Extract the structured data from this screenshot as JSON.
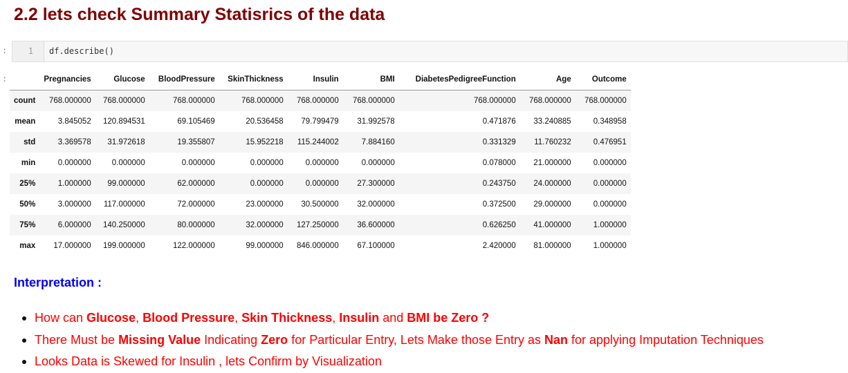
{
  "heading": "2.2 lets check Summary Statisrics of the data",
  "input_cell": {
    "prompt": ":",
    "line_number": "1",
    "code": "df.describe()"
  },
  "output_cell": {
    "prompt": ":"
  },
  "table": {
    "columns": [
      "Pregnancies",
      "Glucose",
      "BloodPressure",
      "SkinThickness",
      "Insulin",
      "BMI",
      "DiabetesPedigreeFunction",
      "Age",
      "Outcome"
    ],
    "rows": [
      {
        "label": "count",
        "values": [
          "768.000000",
          "768.000000",
          "768.000000",
          "768.000000",
          "768.000000",
          "768.000000",
          "768.000000",
          "768.000000",
          "768.000000"
        ]
      },
      {
        "label": "mean",
        "values": [
          "3.845052",
          "120.894531",
          "69.105469",
          "20.536458",
          "79.799479",
          "31.992578",
          "0.471876",
          "33.240885",
          "0.348958"
        ]
      },
      {
        "label": "std",
        "values": [
          "3.369578",
          "31.972618",
          "19.355807",
          "15.952218",
          "115.244002",
          "7.884160",
          "0.331329",
          "11.760232",
          "0.476951"
        ]
      },
      {
        "label": "min",
        "values": [
          "0.000000",
          "0.000000",
          "0.000000",
          "0.000000",
          "0.000000",
          "0.000000",
          "0.078000",
          "21.000000",
          "0.000000"
        ]
      },
      {
        "label": "25%",
        "values": [
          "1.000000",
          "99.000000",
          "62.000000",
          "0.000000",
          "0.000000",
          "27.300000",
          "0.243750",
          "24.000000",
          "0.000000"
        ]
      },
      {
        "label": "50%",
        "values": [
          "3.000000",
          "117.000000",
          "72.000000",
          "23.000000",
          "30.500000",
          "32.000000",
          "0.372500",
          "29.000000",
          "0.000000"
        ]
      },
      {
        "label": "75%",
        "values": [
          "6.000000",
          "140.250000",
          "80.000000",
          "32.000000",
          "127.250000",
          "36.600000",
          "0.626250",
          "41.000000",
          "1.000000"
        ]
      },
      {
        "label": "max",
        "values": [
          "17.000000",
          "199.000000",
          "122.000000",
          "99.000000",
          "846.000000",
          "67.100000",
          "2.420000",
          "81.000000",
          "1.000000"
        ]
      }
    ]
  },
  "interpretation": {
    "title": "Interpretation :",
    "points": [
      [
        {
          "t": "How can ",
          "b": false
        },
        {
          "t": "Glucose",
          "b": true
        },
        {
          "t": ", ",
          "b": false
        },
        {
          "t": "Blood Pressure",
          "b": true
        },
        {
          "t": ", ",
          "b": false
        },
        {
          "t": "Skin Thickness",
          "b": true
        },
        {
          "t": ", ",
          "b": false
        },
        {
          "t": "Insulin",
          "b": true
        },
        {
          "t": " and ",
          "b": false
        },
        {
          "t": "BMI be Zero ?",
          "b": true
        }
      ],
      [
        {
          "t": "There Must be ",
          "b": false
        },
        {
          "t": "Missing Value",
          "b": true
        },
        {
          "t": " Indicating ",
          "b": false
        },
        {
          "t": "Zero",
          "b": true
        },
        {
          "t": " for Particular Entry, Lets Make those Entry as ",
          "b": false
        },
        {
          "t": "Nan",
          "b": true
        },
        {
          "t": " for applying Imputation Techniques",
          "b": false
        }
      ],
      [
        {
          "t": "Looks Data is Skewed for Insulin , lets Confirm by Visualization",
          "b": false
        }
      ]
    ]
  },
  "colors": {
    "heading": "#800000",
    "interpretation_title": "#0000ff",
    "interpretation_text": "#ff0000"
  }
}
